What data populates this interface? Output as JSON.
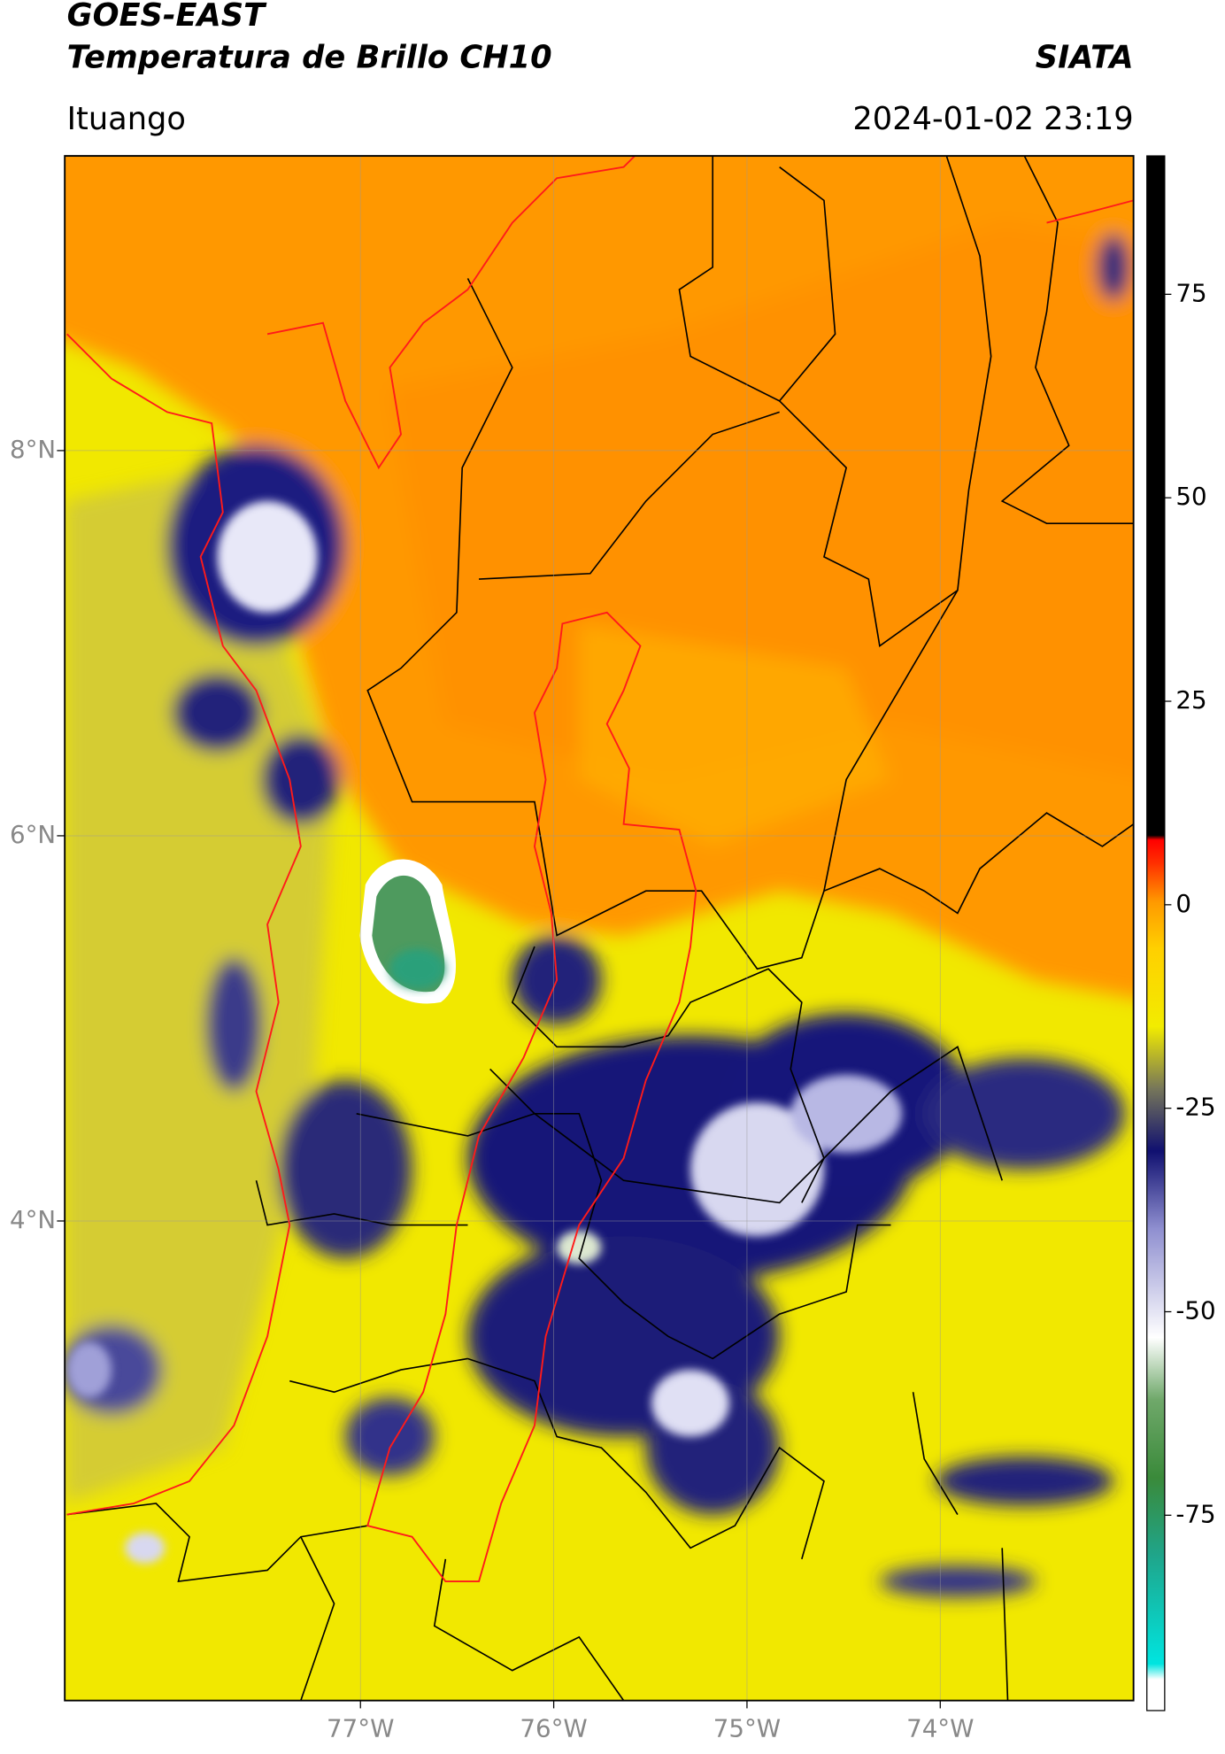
{
  "header": {
    "title": "GOES-EAST",
    "subtitle": "Temperatura de Brillo CH10",
    "agency": "SIATA",
    "location": "Ituango",
    "datetime": "2024-01-02 23:19"
  },
  "map": {
    "xlim": [
      -78.53,
      -73.0
    ],
    "ylim": [
      1.51,
      9.53
    ],
    "xticks": [
      {
        "value": -77,
        "label": "77°W"
      },
      {
        "value": -76,
        "label": "76°W"
      },
      {
        "value": -75,
        "label": "75°W"
      },
      {
        "value": -74,
        "label": "74°W"
      }
    ],
    "yticks": [
      {
        "value": 8,
        "label": "8°N"
      },
      {
        "value": 6,
        "label": "6°N"
      },
      {
        "value": 4,
        "label": "4°N"
      }
    ],
    "grid": true
  },
  "colorbar": {
    "lim": [
      -99,
      92
    ],
    "ticks": [
      75,
      50,
      25,
      0,
      -25,
      -50,
      -75
    ]
  }
}
